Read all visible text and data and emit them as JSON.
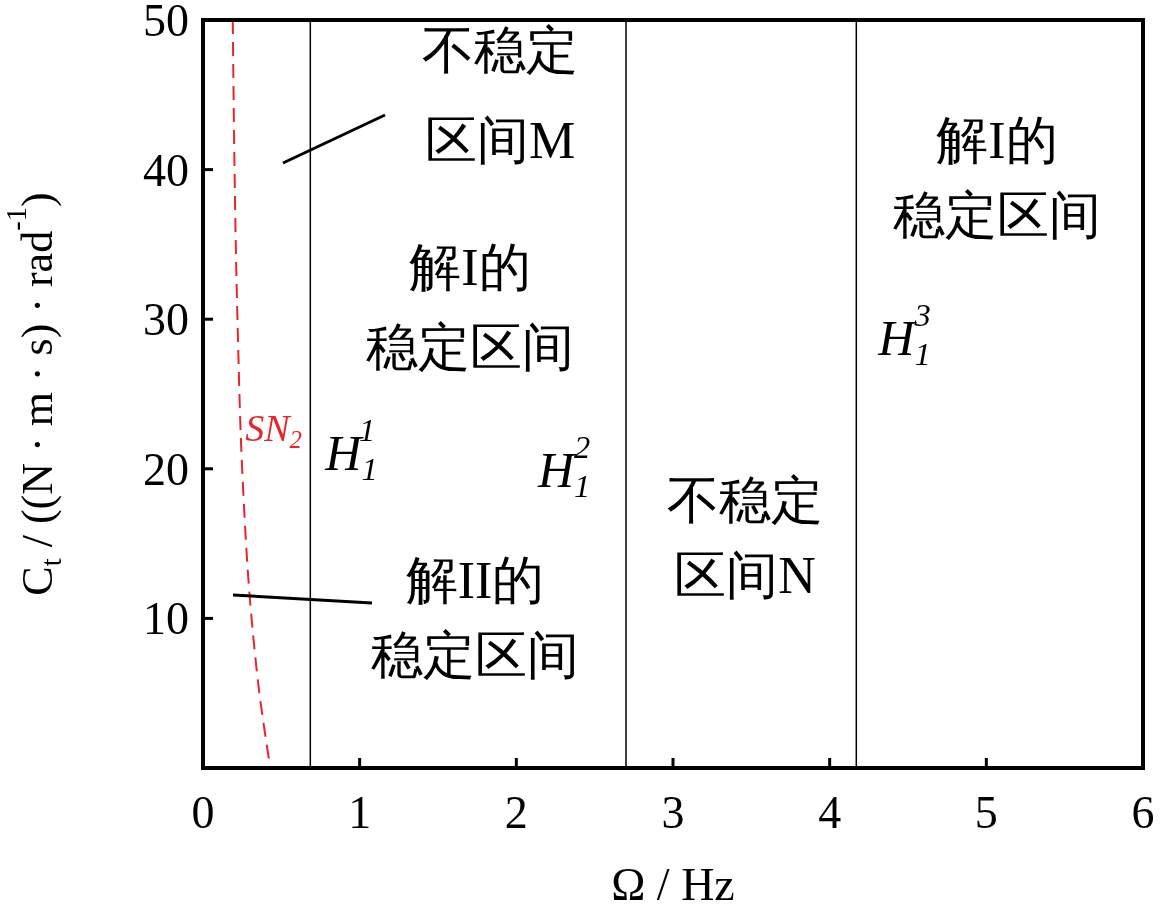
{
  "chart_data": {
    "type": "line",
    "xlabel": "Ω / Hz",
    "ylabel": "C$_{t}$ / ((N · m · s) · rad$^{-1}$)",
    "xlim": [
      0,
      6
    ],
    "ylim": [
      0,
      50
    ],
    "xticks": [
      0,
      1,
      2,
      3,
      4,
      5,
      6
    ],
    "yticks": [
      10,
      20,
      30,
      40,
      50
    ],
    "grid": false,
    "series": [
      {
        "name": "SN$_{2}$",
        "color": "#e8262a",
        "line_style": "dashed",
        "x": [
          0.19,
          0.22,
          0.25,
          0.31,
          0.36,
          0.43
        ],
        "values": [
          50,
          30,
          20,
          10,
          5,
          0
        ]
      }
    ],
    "ref_lines": [
      {
        "axis": "x",
        "value": 0.685,
        "label": "H$_{1}$$^{1}$",
        "color": "#000000"
      },
      {
        "axis": "x",
        "value": 2.7,
        "label": "H$_{1}$$^{2}$",
        "color": "#000000"
      },
      {
        "axis": "x",
        "value": 4.17,
        "label": "H$_{1}$$^{3}$",
        "color": "#000000"
      }
    ],
    "annotations": [
      "不稳定区间M",
      "解I的稳定区间",
      "解I的稳定区间",
      "不稳定区间N",
      "解II的稳定区间"
    ]
  }
}
